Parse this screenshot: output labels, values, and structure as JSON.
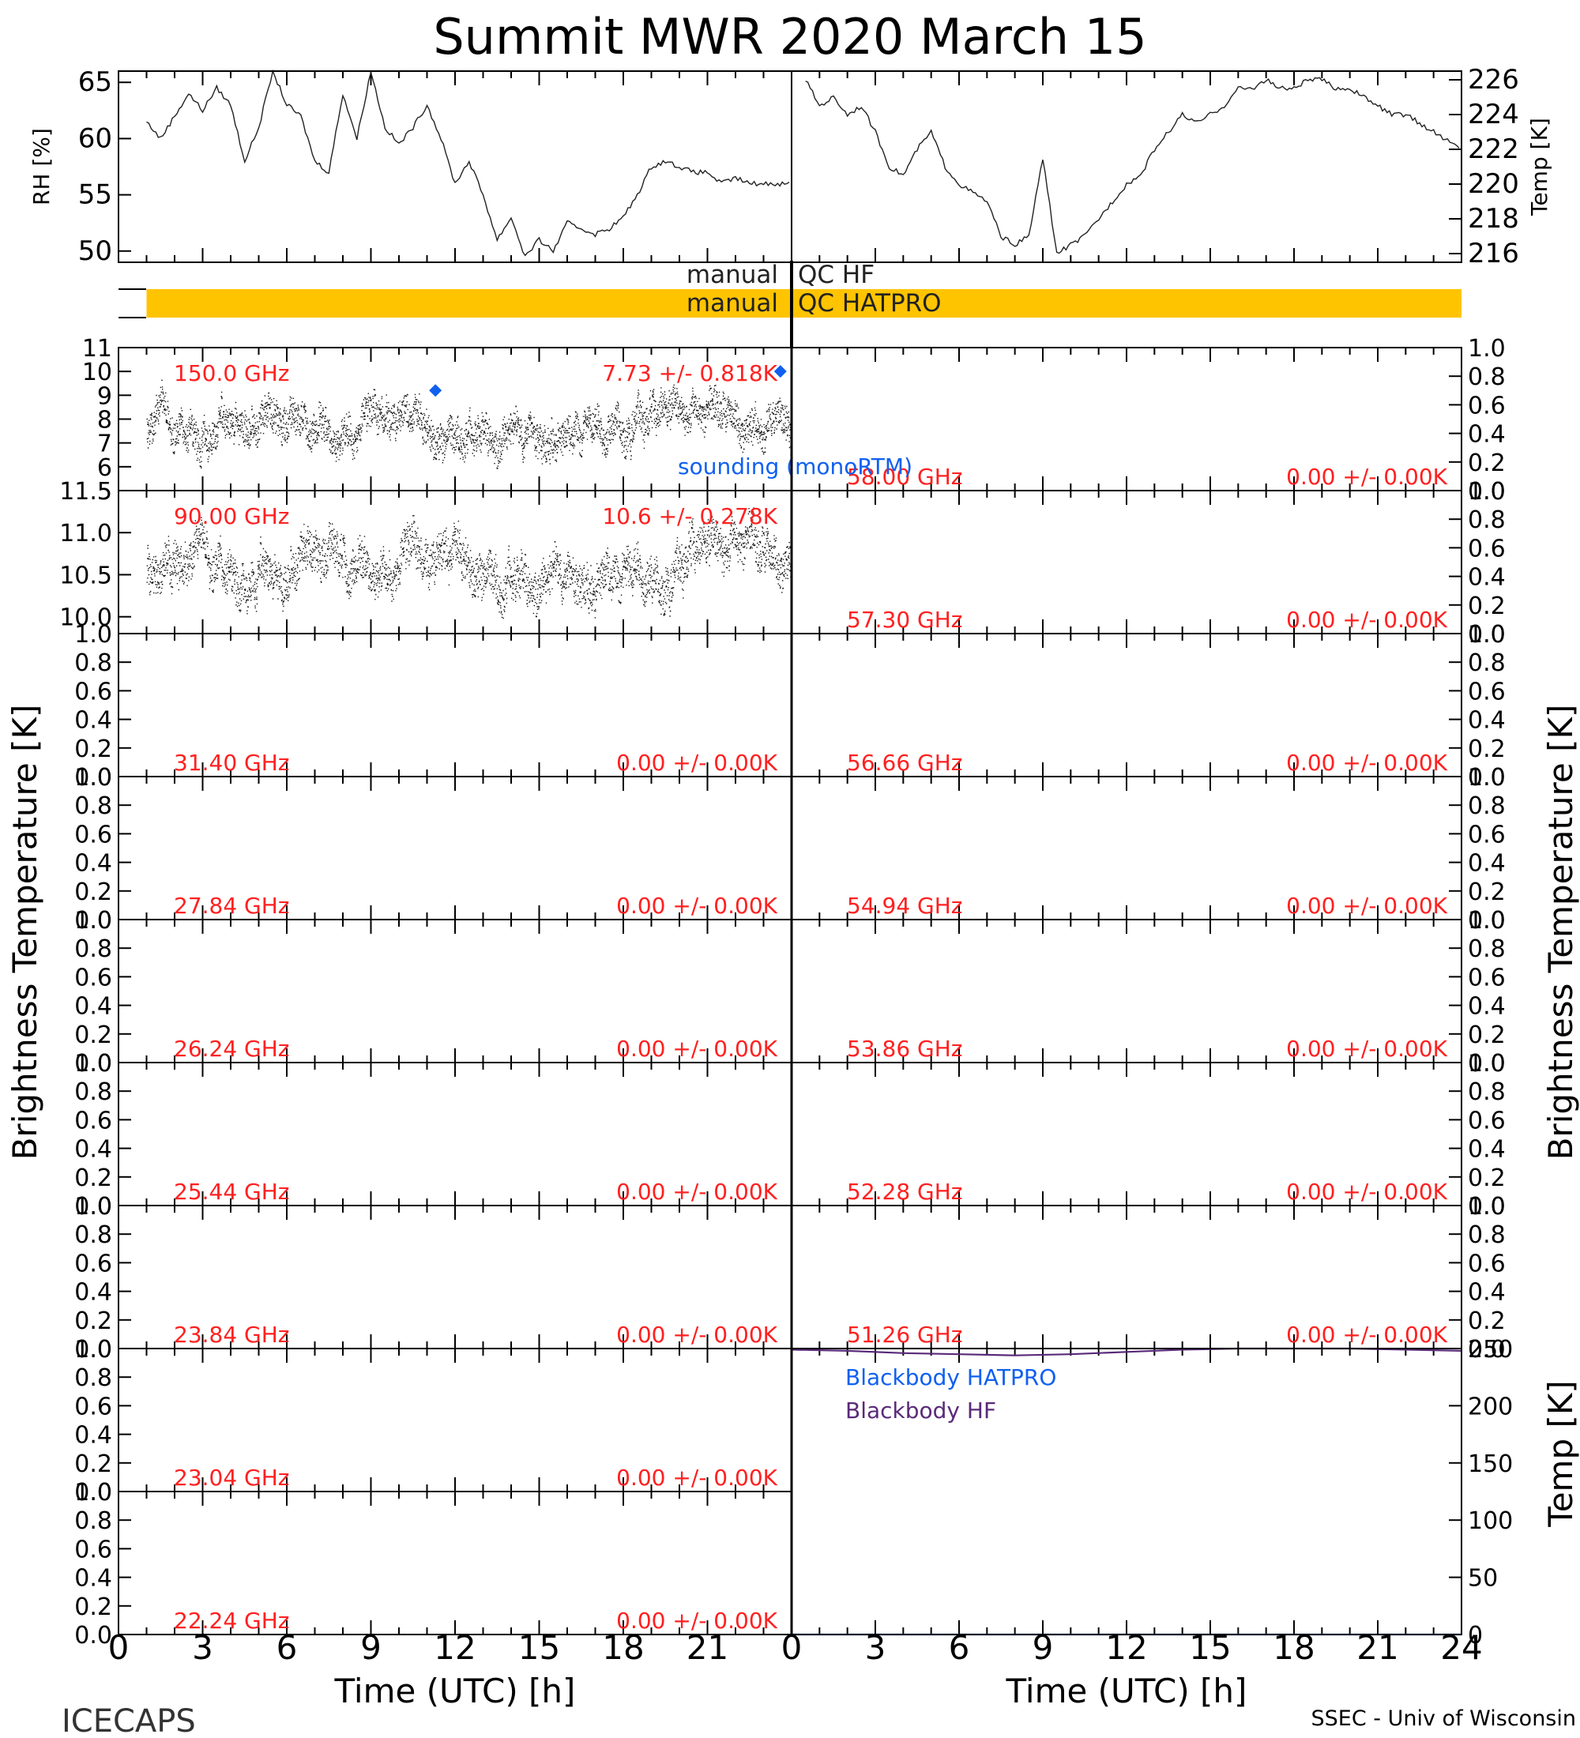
{
  "title": "Summit MWR 2020 March 15",
  "footer": {
    "left": "ICECAPS",
    "right": "SSEC - Univ of Wisconsin"
  },
  "colors": {
    "axis": "#000000",
    "label_red": "#ff2020",
    "sounding_blue": "#1060f0",
    "qc_bar": "#ffc400",
    "bb_hf": "#5a2a7a",
    "bb_hatpro": "#1060f0"
  },
  "x_axis": {
    "label": "Time (UTC) [h]",
    "range": [
      0,
      24
    ],
    "ticks": [
      "0",
      "3",
      "6",
      "9",
      "12",
      "15",
      "18",
      "21",
      "24"
    ]
  },
  "qc": {
    "hf_label": "manual QC HF",
    "hatpro_label": "manual QC HATPRO",
    "hatpro_flag_range_h": [
      1,
      24
    ]
  },
  "legend": {
    "sounding": "sounding (monoRTM)",
    "bb_hatpro": "Blackbody HATPRO",
    "bb_hf": "Blackbody HF"
  },
  "side_labels": {
    "tb_left": "Brightness Temperature [K]",
    "tb_right": "Brightness Temperature [K]",
    "bb_right": "Temp [K]"
  },
  "chart_data": [
    {
      "id": "rh",
      "type": "line",
      "ylabel": "RH [%]",
      "ylim": [
        49,
        66
      ],
      "yticks": [
        "50",
        "55",
        "60",
        "65"
      ],
      "x": [
        1,
        1.5,
        2,
        2.5,
        3,
        3.5,
        4,
        4.5,
        5,
        5.5,
        6,
        6.5,
        7,
        7.5,
        8,
        8.5,
        9,
        9.5,
        10,
        10.5,
        11,
        11.5,
        12,
        12.5,
        13,
        13.5,
        14,
        14.5,
        15,
        15.5,
        16,
        16.5,
        17,
        17.5,
        18,
        18.5,
        19,
        19.5,
        20,
        20.5,
        21,
        21.5,
        22,
        22.5,
        23,
        23.5,
        24
      ],
      "y": [
        61.5,
        60,
        62,
        64,
        62.5,
        64.5,
        63,
        58,
        61,
        66,
        63,
        62,
        58,
        57,
        64,
        60,
        66,
        61,
        59.5,
        61,
        63,
        60,
        56,
        58,
        55,
        51,
        53,
        49.5,
        51,
        50,
        52.5,
        52,
        51.5,
        52,
        53,
        55,
        57.5,
        58,
        57.5,
        57,
        57,
        56,
        56.5,
        56,
        56,
        56,
        56
      ]
    },
    {
      "id": "temp",
      "type": "line",
      "ylabel": "Temp [K]",
      "ylim": [
        215.5,
        226.5
      ],
      "yticks": [
        "216",
        "218",
        "220",
        "222",
        "224",
        "226"
      ],
      "x": [
        0.5,
        1,
        1.5,
        2,
        2.5,
        3,
        3.5,
        4,
        4.5,
        5,
        5.5,
        6,
        6.5,
        7,
        7.5,
        8,
        8.5,
        9,
        9.5,
        10,
        10.5,
        11,
        11.5,
        12,
        12.5,
        13,
        13.5,
        14,
        14.5,
        15,
        15.5,
        16,
        16.5,
        17,
        17.5,
        18,
        18.5,
        19,
        19.5,
        20,
        20.5,
        21,
        21.5,
        22,
        22.5,
        23,
        23.5,
        24
      ],
      "y": [
        226,
        224.5,
        225,
        224,
        224.5,
        223,
        221,
        220.5,
        222,
        223,
        221,
        220,
        219.5,
        219,
        217,
        216.5,
        217,
        221.5,
        216,
        216.5,
        217,
        218,
        219,
        220,
        220.5,
        222,
        223,
        224,
        223.5,
        224,
        224.5,
        225.5,
        225.5,
        226,
        225.5,
        225.5,
        226,
        226,
        225.5,
        225.5,
        225,
        224.5,
        224,
        224,
        223.5,
        223,
        222.5,
        222
      ]
    },
    {
      "id": "tb150",
      "type": "scatter",
      "freq_label": "150.0 GHz",
      "stat_label": "7.73 +/- 0.818K",
      "mean": 7.73,
      "std": 0.818,
      "ylim": [
        5,
        11
      ],
      "yticks": [
        "5",
        "6",
        "7",
        "8",
        "9",
        "10",
        "11"
      ],
      "sounding": [
        {
          "x": 11.3,
          "y": 9.2
        },
        {
          "x": 23.6,
          "y": 10.0
        }
      ]
    },
    {
      "id": "tb90",
      "type": "scatter",
      "freq_label": "90.00 GHz",
      "stat_label": "10.6 +/- 0.278K",
      "mean": 10.6,
      "std": 0.278,
      "ylim": [
        9.8,
        11.5
      ],
      "yticks": [
        "10.0",
        "10.5",
        "11.0",
        "11.5"
      ]
    },
    {
      "id": "tb3140",
      "type": "line",
      "freq_label": "31.40 GHz",
      "stat_label": "0.00 +/- 0.00K",
      "ylim": [
        0,
        1
      ],
      "yticks": [
        "0.0",
        "0.2",
        "0.4",
        "0.6",
        "0.8",
        "1.0"
      ]
    },
    {
      "id": "tb2784",
      "type": "line",
      "freq_label": "27.84 GHz",
      "stat_label": "0.00 +/- 0.00K",
      "ylim": [
        0,
        1
      ],
      "yticks": [
        "0.0",
        "0.2",
        "0.4",
        "0.6",
        "0.8",
        "1.0"
      ]
    },
    {
      "id": "tb2624",
      "type": "line",
      "freq_label": "26.24 GHz",
      "stat_label": "0.00 +/- 0.00K",
      "ylim": [
        0,
        1
      ],
      "yticks": [
        "0.0",
        "0.2",
        "0.4",
        "0.6",
        "0.8",
        "1.0"
      ]
    },
    {
      "id": "tb2544",
      "type": "line",
      "freq_label": "25.44 GHz",
      "stat_label": "0.00 +/- 0.00K",
      "ylim": [
        0,
        1
      ],
      "yticks": [
        "0.0",
        "0.2",
        "0.4",
        "0.6",
        "0.8",
        "1.0"
      ]
    },
    {
      "id": "tb2384",
      "type": "line",
      "freq_label": "23.84 GHz",
      "stat_label": "0.00 +/- 0.00K",
      "ylim": [
        0,
        1
      ],
      "yticks": [
        "0.0",
        "0.2",
        "0.4",
        "0.6",
        "0.8",
        "1.0"
      ]
    },
    {
      "id": "tb2304",
      "type": "line",
      "freq_label": "23.04 GHz",
      "stat_label": "0.00 +/- 0.00K",
      "ylim": [
        0,
        1
      ],
      "yticks": [
        "0.0",
        "0.2",
        "0.4",
        "0.6",
        "0.8",
        "1.0"
      ]
    },
    {
      "id": "tb2224",
      "type": "line",
      "freq_label": "22.24 GHz",
      "stat_label": "0.00 +/- 0.00K",
      "ylim": [
        0,
        1
      ],
      "yticks": [
        "0.0",
        "0.2",
        "0.4",
        "0.6",
        "0.8",
        "1.0"
      ]
    },
    {
      "id": "tb5800",
      "type": "line",
      "freq_label": "58.00 GHz",
      "stat_label": "0.00 +/- 0.00K",
      "ylim": [
        0,
        1
      ],
      "yticks": [
        "0.0",
        "0.2",
        "0.4",
        "0.6",
        "0.8",
        "1.0"
      ]
    },
    {
      "id": "tb5730",
      "type": "line",
      "freq_label": "57.30 GHz",
      "stat_label": "0.00 +/- 0.00K",
      "ylim": [
        0,
        1
      ],
      "yticks": [
        "0.0",
        "0.2",
        "0.4",
        "0.6",
        "0.8",
        "1.0"
      ]
    },
    {
      "id": "tb5666",
      "type": "line",
      "freq_label": "56.66 GHz",
      "stat_label": "0.00 +/- 0.00K",
      "ylim": [
        0,
        1
      ],
      "yticks": [
        "0.0",
        "0.2",
        "0.4",
        "0.6",
        "0.8",
        "1.0"
      ]
    },
    {
      "id": "tb5494",
      "type": "line",
      "freq_label": "54.94 GHz",
      "stat_label": "0.00 +/- 0.00K",
      "ylim": [
        0,
        1
      ],
      "yticks": [
        "0.0",
        "0.2",
        "0.4",
        "0.6",
        "0.8",
        "1.0"
      ]
    },
    {
      "id": "tb5386",
      "type": "line",
      "freq_label": "53.86 GHz",
      "stat_label": "0.00 +/- 0.00K",
      "ylim": [
        0,
        1
      ],
      "yticks": [
        "0.0",
        "0.2",
        "0.4",
        "0.6",
        "0.8",
        "1.0"
      ]
    },
    {
      "id": "tb5228",
      "type": "line",
      "freq_label": "52.28 GHz",
      "stat_label": "0.00 +/- 0.00K",
      "ylim": [
        0,
        1
      ],
      "yticks": [
        "0.0",
        "0.2",
        "0.4",
        "0.6",
        "0.8",
        "1.0"
      ]
    },
    {
      "id": "tb5126",
      "type": "line",
      "freq_label": "51.26 GHz",
      "stat_label": "0.00 +/- 0.00K",
      "ylim": [
        0,
        1
      ],
      "yticks": [
        "0.0",
        "0.2",
        "0.4",
        "0.6",
        "0.8",
        "1.0"
      ]
    },
    {
      "id": "blackbody",
      "type": "line",
      "ylabel": "Temp [K]",
      "ylim": [
        0,
        250
      ],
      "yticks": [
        "0",
        "50",
        "100",
        "150",
        "200",
        "250"
      ],
      "series": [
        {
          "name": "Blackbody HF",
          "x": [
            0,
            2,
            4,
            6,
            8,
            10,
            12,
            14,
            16,
            18,
            20,
            22,
            24
          ],
          "y": [
            249,
            248,
            246,
            245,
            244,
            245,
            247,
            249,
            250,
            250,
            250,
            249,
            248
          ]
        },
        {
          "name": "Blackbody HATPRO",
          "x": [
            0,
            24
          ],
          "y": [
            0,
            0
          ]
        }
      ]
    }
  ]
}
